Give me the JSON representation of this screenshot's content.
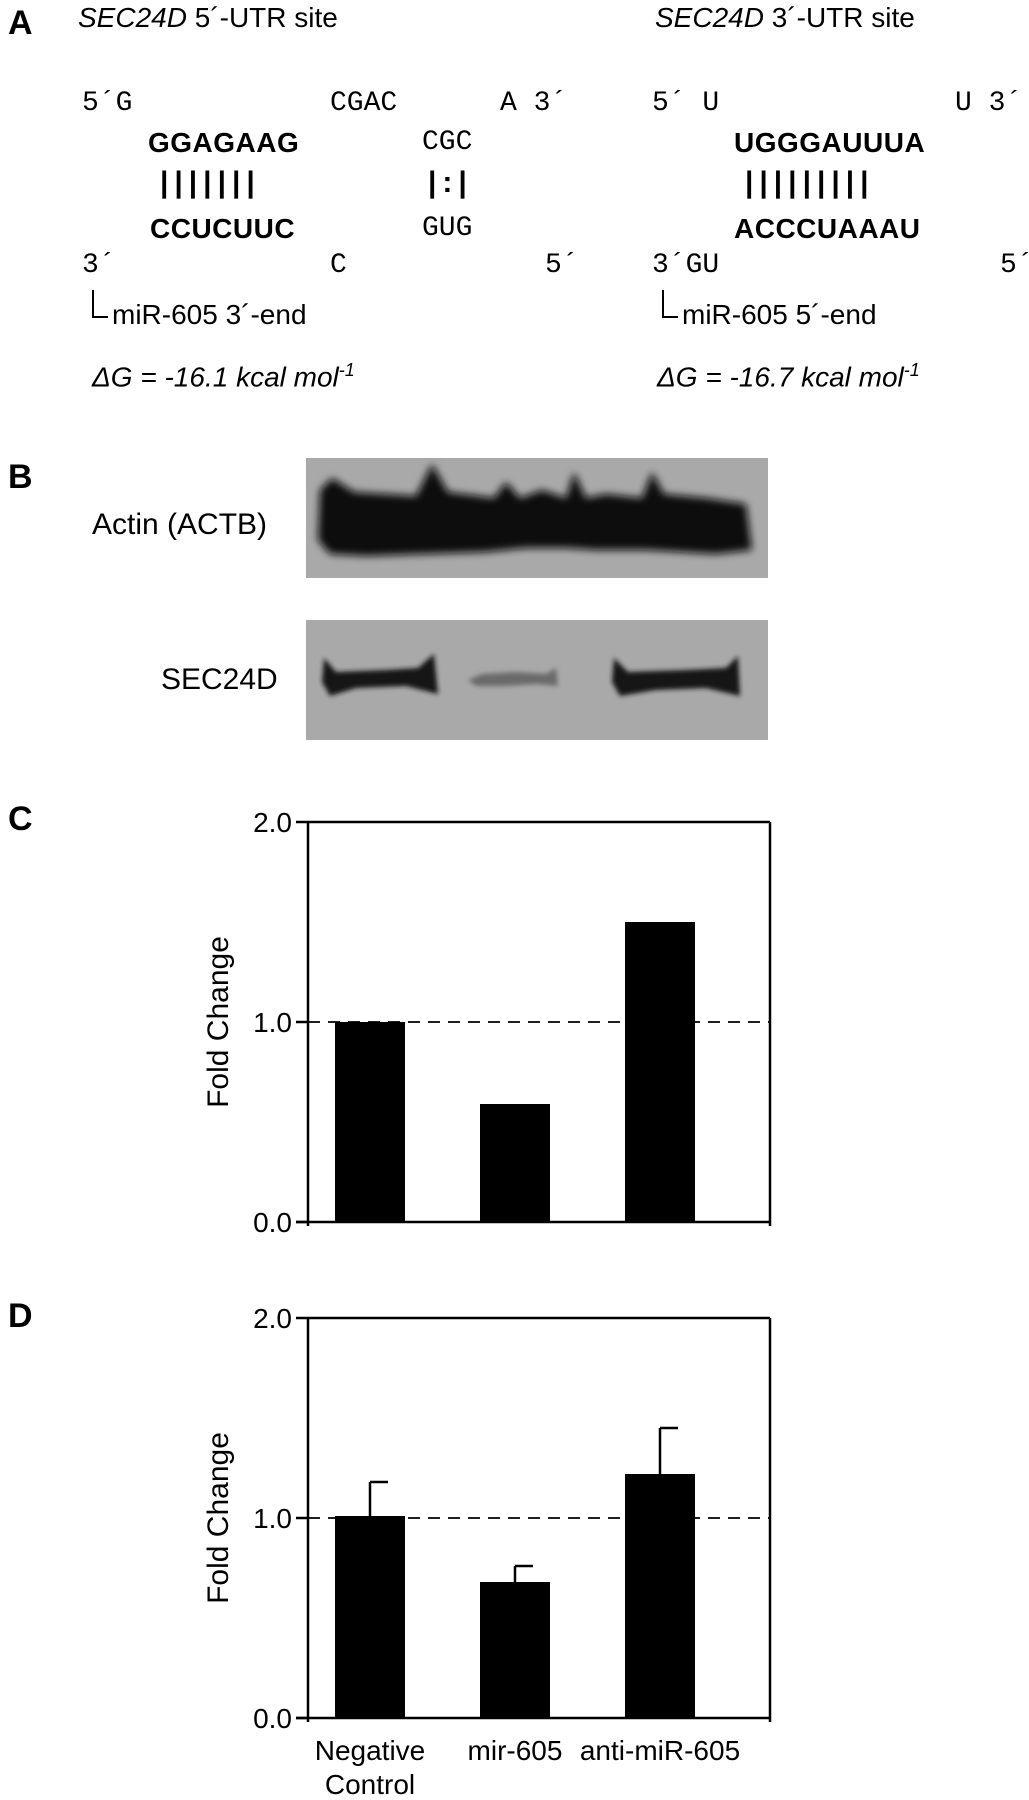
{
  "panels": {
    "a": "A",
    "b": "B",
    "c": "C",
    "d": "D"
  },
  "site5": {
    "gene": "SEC24D",
    "title_rest": " 5´-UTR site",
    "top_left": "5´G",
    "top_mid": "CGAC",
    "top_right": "A 3´",
    "seq_top_bold": "GGAGAAG",
    "seq_top_plain": "CGC",
    "pairs_bold": "|||||||",
    "pairs_wobble": "|:|",
    "seq_bottom_bold": "CCUCUUC",
    "seq_bottom_plain": "GUG",
    "bottom_left": "3´",
    "bottom_mid": "C",
    "bottom_right": "5´",
    "end_label": "miR-605 3´-end",
    "dg_prefix": "ΔG = -16.1 kcal mol",
    "dg_exp": "-1"
  },
  "site3": {
    "gene": "SEC24D",
    "title_rest": " 3´-UTR site",
    "top_left": "5´ U",
    "top_right": "U 3´",
    "seq_top_bold": "UGGGAUUUA",
    "pairs_bold": "|||||||||",
    "seq_bottom_bold": "ACCCUAAAU",
    "bottom_left": "3´GU",
    "bottom_right": "5´",
    "end_label": "miR-605 5´-end",
    "dg_prefix": "ΔG = -16.7 kcal mol",
    "dg_exp": "-1"
  },
  "blot": {
    "actin_label": "Actin (ACTB)",
    "sec24d_label": "SEC24D"
  },
  "chart_data": [
    {
      "type": "bar",
      "panel": "C",
      "categories": [
        "Negative Control",
        "mir-605",
        "anti-miR-605"
      ],
      "values": [
        1.0,
        0.59,
        1.5
      ],
      "ylabel": "Fold Change",
      "ylim": [
        0.0,
        2.0
      ],
      "yticks": [
        "0.0",
        "1.0",
        "2.0"
      ],
      "reference_line": 1.0,
      "bar_color": "#000000"
    },
    {
      "type": "bar",
      "panel": "D",
      "categories": [
        "Negative Control",
        "mir-605",
        "anti-miR-605"
      ],
      "category_lines": [
        [
          "Negative",
          "Control"
        ],
        [
          "mir-605"
        ],
        [
          "anti-miR-605"
        ]
      ],
      "values": [
        1.01,
        0.68,
        1.22
      ],
      "errors": [
        0.17,
        0.08,
        0.23
      ],
      "ylabel": "Fold Change",
      "ylim": [
        0.0,
        2.0
      ],
      "yticks": [
        "0.0",
        "1.0",
        "2.0"
      ],
      "reference_line": 1.0,
      "bar_color": "#000000"
    }
  ]
}
